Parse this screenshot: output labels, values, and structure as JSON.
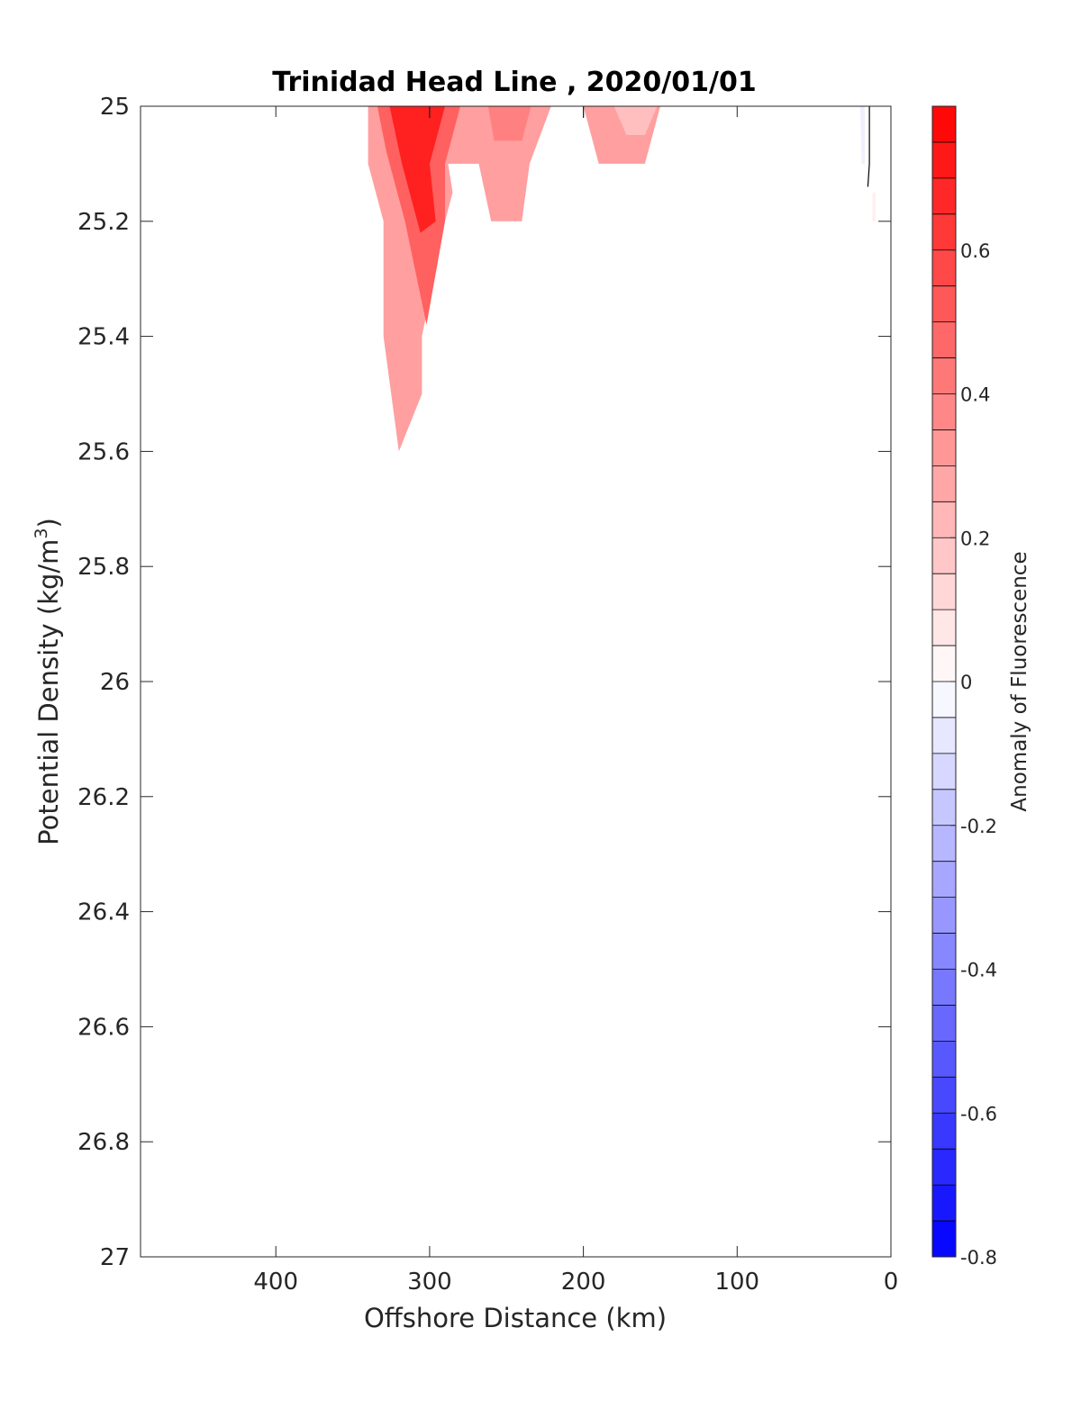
{
  "chart_data": {
    "type": "heatmap",
    "title": "Trinidad Head Line , 2020/01/01",
    "xlabel": "Offshore Distance (km)",
    "ylabel_main": "Potential Density (kg/m",
    "ylabel_sup": "3",
    "ylabel_close": ")",
    "xlim": [
      488,
      0
    ],
    "ylim": [
      25,
      27
    ],
    "x_reversed": true,
    "y_reversed": true,
    "x_ticks": [
      400,
      300,
      200,
      100,
      0
    ],
    "x_tick_labels": [
      "400",
      "300",
      "200",
      "100",
      "0"
    ],
    "y_ticks": [
      25,
      25.2,
      25.4,
      25.6,
      25.8,
      26,
      26.2,
      26.4,
      26.6,
      26.8,
      27
    ],
    "y_tick_labels": [
      "25",
      "25.2",
      "25.4",
      "25.6",
      "25.8",
      "26",
      "26.2",
      "26.4",
      "26.6",
      "26.8",
      "27"
    ],
    "grid": false,
    "colorbar": {
      "label": "Anomaly of Fluorescence",
      "range": [
        -0.8,
        0.8
      ],
      "levels": 32,
      "ticks": [
        0.6,
        0.4,
        0.2,
        0,
        -0.2,
        -0.4,
        -0.6,
        -0.8
      ],
      "tick_labels": [
        "0.6",
        "0.4",
        "0.2",
        "0",
        "-0.2",
        "-0.4",
        "-0.6",
        "-0.8"
      ],
      "colormap": "blue-white-red",
      "positive_color": "#ff0000",
      "negative_color": "#0000ff"
    },
    "anomaly_regions": [
      {
        "name": "main bloom",
        "value": 0.3,
        "polygon": [
          [
            340,
            25
          ],
          [
            221,
            25
          ],
          [
            268,
            25.1
          ],
          [
            288,
            25.1
          ],
          [
            285,
            25.15
          ],
          [
            290,
            25.2
          ],
          [
            305,
            25.4
          ],
          [
            305,
            25.5
          ],
          [
            320,
            25.6
          ],
          [
            330,
            25.4
          ],
          [
            330,
            25.2
          ],
          [
            340,
            25.1
          ]
        ]
      },
      {
        "name": "main bloom inner",
        "value": 0.5,
        "polygon": [
          [
            334,
            25
          ],
          [
            280,
            25
          ],
          [
            290,
            25.1
          ],
          [
            290,
            25.2
          ],
          [
            302,
            25.38
          ],
          [
            316,
            25.2
          ],
          [
            328,
            25.08
          ]
        ]
      },
      {
        "name": "main bloom core",
        "value": 0.7,
        "polygon": [
          [
            326,
            25
          ],
          [
            290,
            25
          ],
          [
            300,
            25.1
          ],
          [
            296,
            25.2
          ],
          [
            306,
            25.22
          ],
          [
            318,
            25.1
          ]
        ]
      },
      {
        "name": "mid patch",
        "value": 0.3,
        "polygon": [
          [
            268,
            25
          ],
          [
            221,
            25
          ],
          [
            235,
            25.1
          ],
          [
            240,
            25.2
          ],
          [
            260,
            25.2
          ],
          [
            268,
            25.1
          ]
        ]
      },
      {
        "name": "mid patch inner",
        "value": 0.4,
        "polygon": [
          [
            262,
            25
          ],
          [
            234,
            25
          ],
          [
            240,
            25.06
          ],
          [
            258,
            25.06
          ]
        ]
      },
      {
        "name": "nearshore-mid patch",
        "value": 0.3,
        "polygon": [
          [
            200,
            25
          ],
          [
            150,
            25
          ],
          [
            160,
            25.1
          ],
          [
            190,
            25.1
          ]
        ]
      },
      {
        "name": "nearshore-mid patch inner",
        "value": 0.2,
        "polygon": [
          [
            180,
            25
          ],
          [
            152,
            25
          ],
          [
            160,
            25.05
          ],
          [
            172,
            25.05
          ]
        ]
      },
      {
        "name": "coastal negative",
        "value": -0.05,
        "polygon": [
          [
            20,
            25
          ],
          [
            17,
            25
          ],
          [
            17,
            25.1
          ],
          [
            19,
            25.1
          ]
        ]
      },
      {
        "name": "coastal positive",
        "value": 0.05,
        "polygon": [
          [
            12,
            25.15
          ],
          [
            10,
            25.15
          ],
          [
            10,
            25.2
          ],
          [
            12,
            25.2
          ]
        ]
      }
    ],
    "zero_contours": [
      [
        [
          14,
          25
        ],
        [
          14,
          25.1
        ],
        [
          15,
          25.14
        ]
      ],
      [
        [
          300,
          25
        ],
        [
          300,
          25.02
        ]
      ],
      [
        [
          200,
          25
        ],
        [
          200,
          25.02
        ]
      ]
    ]
  }
}
